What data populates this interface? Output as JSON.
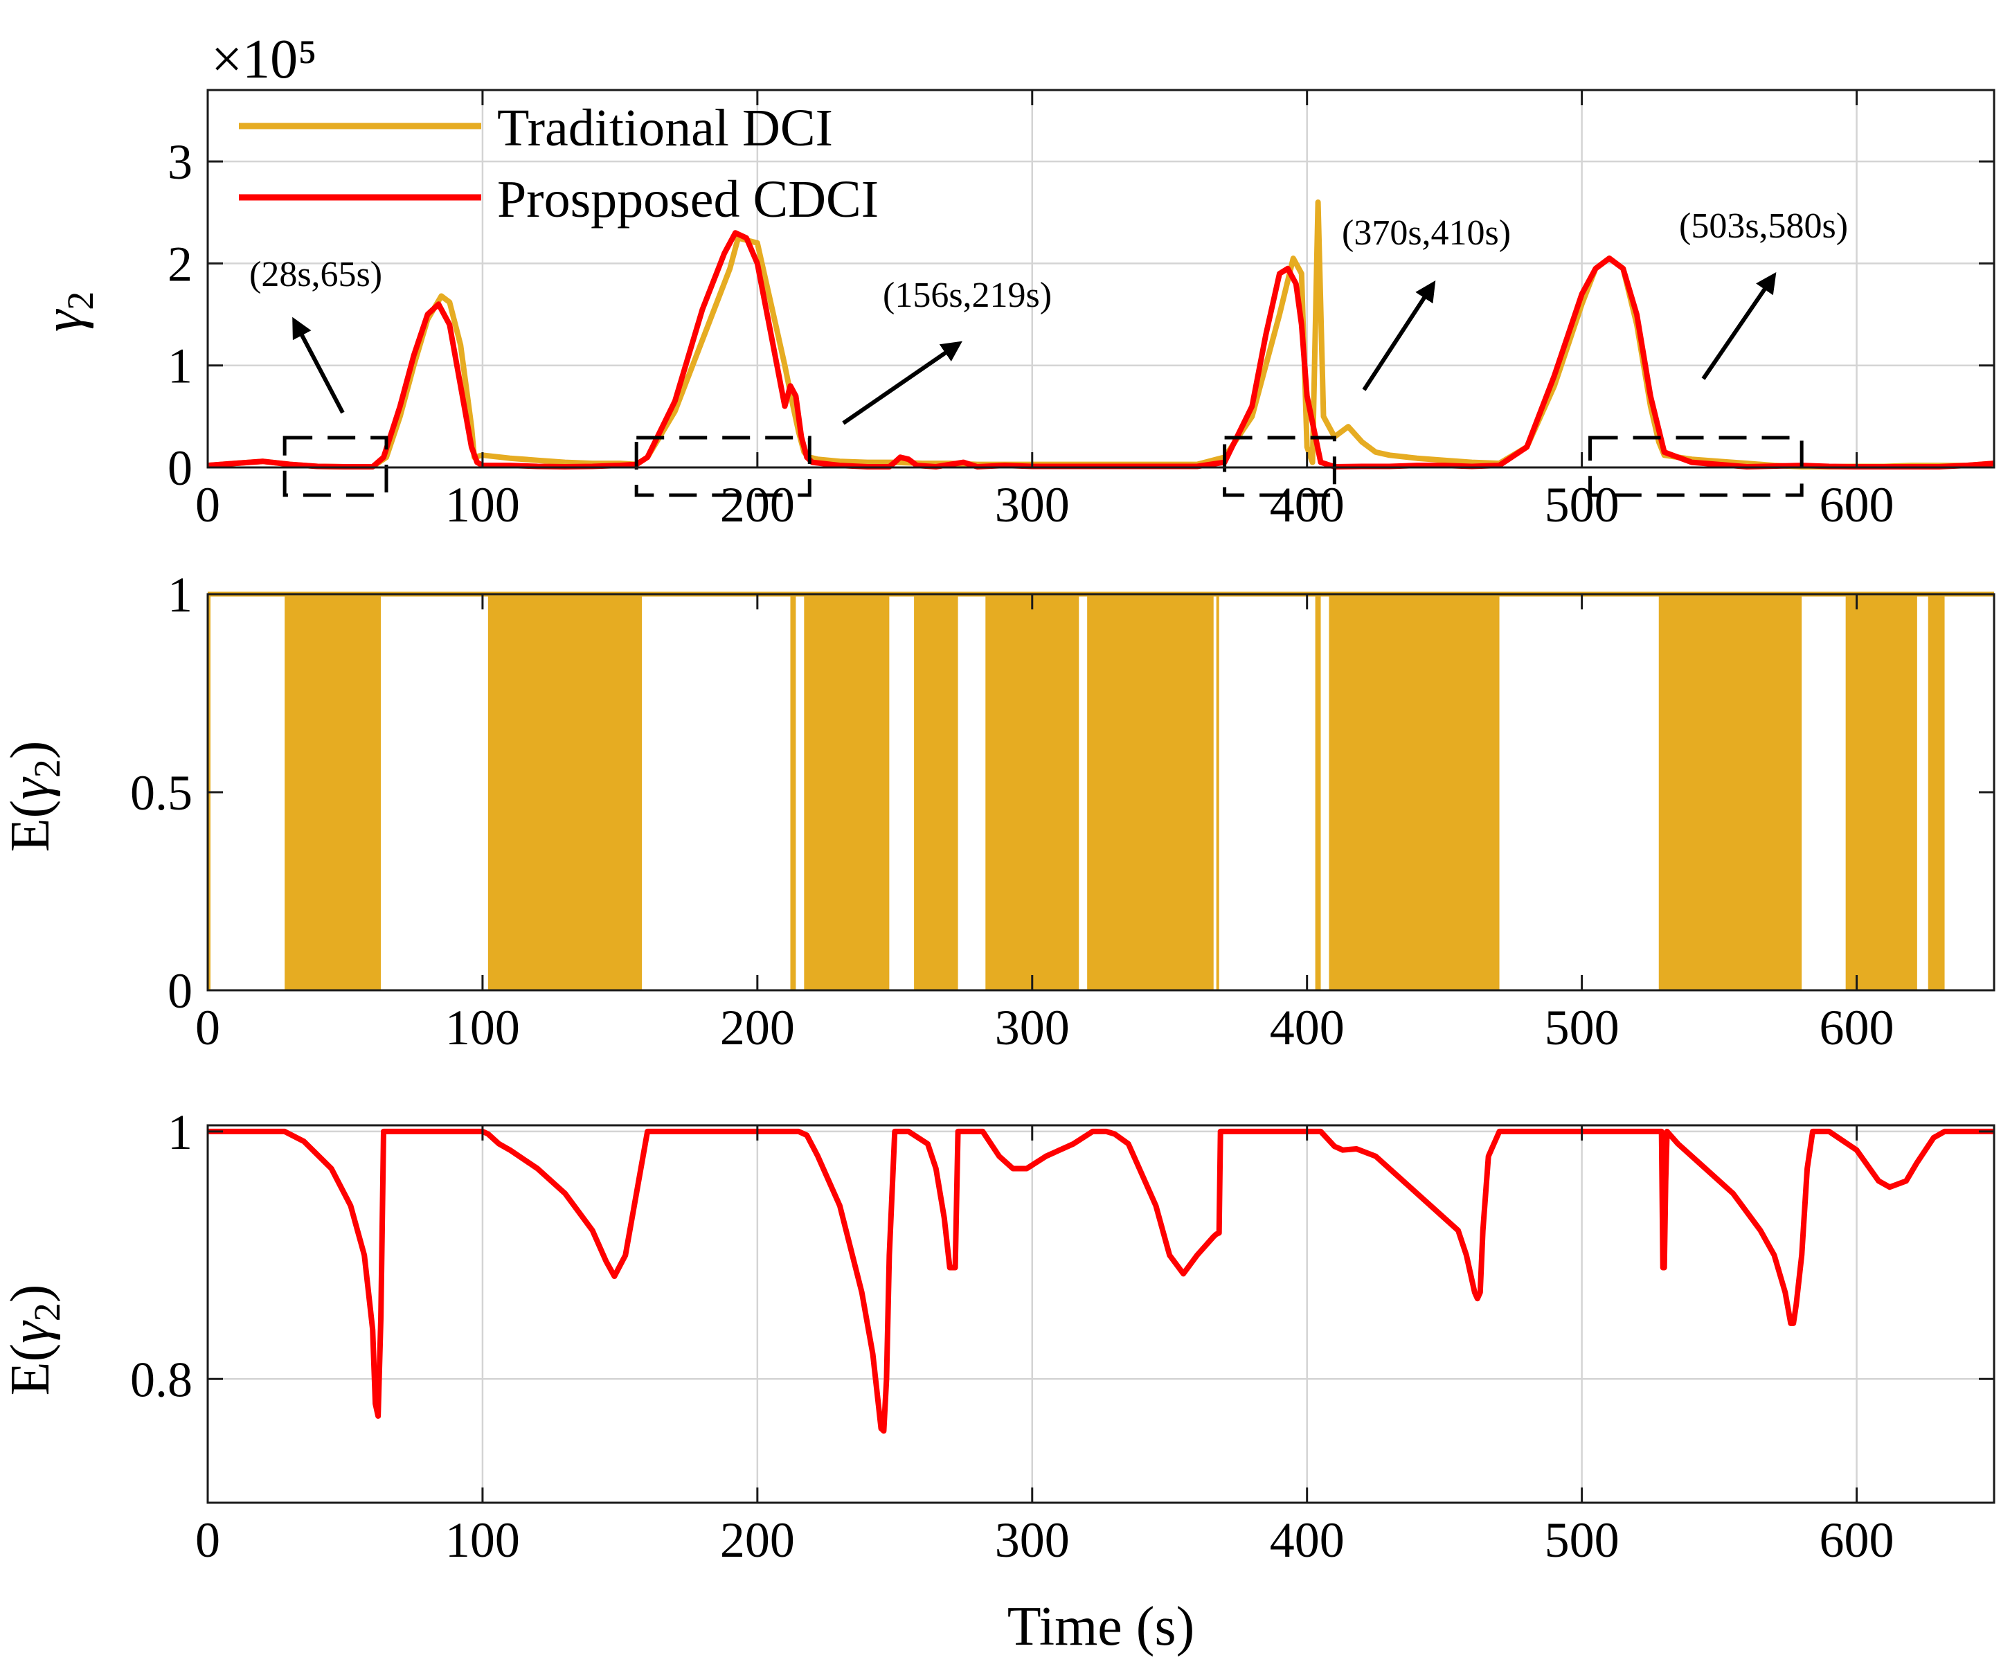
{
  "colors": {
    "traditional": "#E6AC22",
    "proposed": "#FF0000",
    "axis": "#1a1a1a",
    "grid": "#d4d4d4"
  },
  "legend": {
    "traditional": "Traditional DCI",
    "proposed": "Prospposed CDCI"
  },
  "chart_data": [
    {
      "type": "line",
      "panel": "top",
      "ylabel": "γ2",
      "exponent_label": "×10⁵",
      "xlim": [
        0,
        650
      ],
      "ylim": [
        0,
        3.7
      ],
      "xticks": [
        0,
        100,
        200,
        300,
        400,
        500,
        600
      ],
      "xtick_labels": [
        "0",
        "100",
        "200",
        "300",
        "400",
        "500",
        "600"
      ],
      "yticks": [
        0,
        1,
        2,
        3
      ],
      "ytick_labels": [
        "0",
        "1",
        "2",
        "3"
      ],
      "grid": true,
      "legend_position": "top-left",
      "series": [
        {
          "name": "Traditional DCI",
          "x": [
            0,
            10,
            20,
            30,
            40,
            50,
            60,
            65,
            70,
            75,
            80,
            85,
            88,
            92,
            96,
            97,
            100,
            110,
            120,
            130,
            140,
            150,
            156,
            160,
            170,
            180,
            190,
            193,
            200,
            205,
            210,
            213,
            215,
            217,
            219,
            222,
            230,
            240,
            250,
            260,
            270,
            280,
            300,
            320,
            340,
            360,
            370,
            380,
            390,
            395,
            398,
            400,
            402,
            404,
            406,
            410,
            415,
            420,
            425,
            430,
            440,
            450,
            460,
            470,
            480,
            490,
            500,
            505,
            510,
            515,
            520,
            525,
            528,
            530,
            540,
            550,
            560,
            570,
            580,
            590,
            600,
            610,
            620,
            630,
            640,
            650
          ],
          "y": [
            0.02,
            0.04,
            0.06,
            0.03,
            0.01,
            -0.05,
            -0.08,
            0.1,
            0.5,
            1.0,
            1.45,
            1.68,
            1.62,
            1.2,
            0.4,
            0.1,
            0.12,
            0.09,
            0.07,
            0.05,
            0.04,
            0.04,
            0.03,
            0.1,
            0.55,
            1.25,
            1.95,
            2.25,
            2.2,
            1.6,
            1.0,
            0.6,
            0.35,
            0.15,
            0.1,
            0.08,
            0.06,
            0.05,
            0.05,
            0.04,
            0.04,
            0.03,
            0.03,
            0.03,
            0.03,
            0.03,
            0.1,
            0.5,
            1.5,
            2.05,
            1.9,
            0.2,
            0.05,
            2.6,
            0.5,
            0.3,
            0.4,
            0.25,
            0.15,
            0.12,
            0.09,
            0.07,
            0.05,
            0.04,
            0.2,
            0.8,
            1.6,
            1.95,
            2.05,
            1.95,
            1.4,
            0.6,
            0.25,
            0.12,
            0.08,
            0.06,
            0.04,
            0.02,
            0.0,
            -0.02,
            0.01,
            0.01,
            0.02,
            0.02,
            0.02,
            0.04
          ]
        },
        {
          "name": "Prospposed CDCI",
          "x": [
            0,
            10,
            20,
            30,
            40,
            50,
            60,
            64,
            70,
            75,
            80,
            84,
            88,
            92,
            96,
            98,
            100,
            110,
            120,
            130,
            140,
            150,
            156,
            160,
            170,
            180,
            188,
            192,
            196,
            200,
            205,
            210,
            212,
            214,
            216,
            218,
            220,
            230,
            240,
            245,
            248,
            250,
            252,
            255,
            258,
            265,
            275,
            280,
            290,
            300,
            320,
            340,
            360,
            370,
            380,
            385,
            390,
            393,
            396,
            398,
            400,
            405,
            410,
            420,
            430,
            440,
            450,
            460,
            470,
            480,
            490,
            500,
            505,
            510,
            515,
            520,
            525,
            530,
            540,
            560,
            580,
            590,
            600,
            610,
            620,
            630,
            640,
            650
          ],
          "y": [
            0.02,
            0.04,
            0.06,
            0.03,
            0.01,
            -0.05,
            -0.08,
            0.1,
            0.6,
            1.1,
            1.5,
            1.6,
            1.4,
            0.8,
            0.2,
            0.05,
            0.02,
            0.02,
            0.01,
            0.0,
            0.01,
            0.02,
            0.03,
            0.1,
            0.65,
            1.55,
            2.1,
            2.3,
            2.25,
            2.0,
            1.3,
            0.6,
            0.8,
            0.7,
            0.3,
            0.1,
            0.05,
            0.02,
            0.0,
            -0.05,
            -0.1,
            0.05,
            0.1,
            0.08,
            0.02,
            -0.05,
            0.05,
            -0.02,
            0.02,
            0.01,
            0.01,
            0.01,
            0.01,
            0.05,
            0.6,
            1.3,
            1.9,
            1.95,
            1.8,
            1.4,
            0.7,
            0.05,
            0.0,
            0.01,
            0.01,
            0.02,
            0.02,
            0.01,
            0.02,
            0.2,
            0.9,
            1.7,
            1.95,
            2.05,
            1.95,
            1.5,
            0.7,
            0.15,
            0.05,
            0.0,
            0.02,
            0.01,
            0.0,
            0.0,
            0.0,
            0.0,
            0.02,
            0.04
          ]
        }
      ],
      "annotations": [
        {
          "text": "(28s,65s)",
          "start": 28,
          "end": 65
        },
        {
          "text": "(156s,219s)",
          "start": 156,
          "end": 219
        },
        {
          "text": "(370s,410s)",
          "start": 370,
          "end": 410
        },
        {
          "text": "(503s,580s)",
          "start": 503,
          "end": 580
        }
      ]
    },
    {
      "type": "bar",
      "panel": "middle",
      "ylabel": "E(γ2)",
      "xlim": [
        0,
        650
      ],
      "ylim": [
        0,
        1
      ],
      "xticks": [
        0,
        100,
        200,
        300,
        400,
        500,
        600
      ],
      "xtick_labels": [
        "0",
        "100",
        "200",
        "300",
        "400",
        "500",
        "600"
      ],
      "yticks": [
        0,
        0.5,
        1
      ],
      "ytick_labels": [
        "0",
        "0.5",
        "1"
      ],
      "grid": false,
      "series_name": "Traditional DCI",
      "baseline_value": 1,
      "switching_intervals": [
        [
          0,
          1
        ],
        [
          28,
          63
        ],
        [
          102,
          158
        ],
        [
          212,
          214
        ],
        [
          217,
          248
        ],
        [
          257,
          273
        ],
        [
          283,
          317
        ],
        [
          320,
          366
        ],
        [
          367,
          368
        ],
        [
          403,
          405
        ],
        [
          408,
          470
        ],
        [
          528,
          580
        ],
        [
          596,
          622
        ],
        [
          626,
          632
        ]
      ]
    },
    {
      "type": "line",
      "panel": "bottom",
      "ylabel": "E(γ2)",
      "xlabel": "Time (s)",
      "xlim": [
        0,
        650
      ],
      "ylim": [
        0.7,
        1.005
      ],
      "xticks": [
        0,
        100,
        200,
        300,
        400,
        500,
        600
      ],
      "xtick_labels": [
        "0",
        "100",
        "200",
        "300",
        "400",
        "500",
        "600"
      ],
      "yticks": [
        0.8,
        1
      ],
      "ytick_labels": [
        "0.8",
        "1"
      ],
      "grid": true,
      "series": [
        {
          "name": "Prospposed CDCI",
          "x": [
            0,
            28,
            35,
            45,
            52,
            57,
            60,
            61,
            62,
            63,
            64,
            100,
            102,
            106,
            110,
            120,
            130,
            140,
            145,
            148,
            152,
            156,
            160,
            215,
            218,
            222,
            230,
            238,
            242,
            245,
            246,
            247,
            248,
            250,
            251,
            253,
            255,
            262,
            265,
            268,
            270,
            272,
            273,
            282,
            288,
            293,
            298,
            305,
            315,
            322,
            327,
            330,
            335,
            345,
            350,
            355,
            360,
            366,
            367,
            368,
            368.5,
            369,
            370,
            405,
            410,
            413,
            418,
            425,
            435,
            445,
            455,
            458,
            461,
            462,
            463,
            464,
            466,
            470,
            475,
            529,
            529.5,
            530,
            530.5,
            531,
            535,
            545,
            555,
            565,
            570,
            574,
            576,
            577,
            578,
            580,
            582,
            584,
            590,
            600,
            608,
            612,
            618,
            622,
            628,
            632,
            640,
            650
          ],
          "y": [
            1,
            1,
            0.992,
            0.97,
            0.94,
            0.9,
            0.84,
            0.78,
            0.77,
            0.85,
            1,
            1,
            0.998,
            0.99,
            0.985,
            0.97,
            0.95,
            0.92,
            0.895,
            0.883,
            0.9,
            0.95,
            1,
            1,
            0.997,
            0.98,
            0.94,
            0.87,
            0.82,
            0.76,
            0.758,
            0.8,
            0.9,
            1,
            1,
            1,
            1,
            0.99,
            0.97,
            0.93,
            0.89,
            0.89,
            1,
            1,
            0.98,
            0.97,
            0.97,
            0.98,
            0.99,
            1,
            1,
            0.998,
            0.99,
            0.94,
            0.9,
            0.885,
            0.9,
            0.915,
            0.917,
            0.918,
            1,
            1,
            1,
            1,
            0.988,
            0.985,
            0.986,
            0.98,
            0.96,
            0.94,
            0.92,
            0.9,
            0.87,
            0.865,
            0.87,
            0.92,
            0.98,
            1,
            1,
            1,
            0.89,
            0.89,
            0.96,
            1,
            0.99,
            0.97,
            0.95,
            0.92,
            0.9,
            0.87,
            0.845,
            0.845,
            0.86,
            0.9,
            0.97,
            1,
            1,
            0.985,
            0.96,
            0.955,
            0.96,
            0.975,
            0.995,
            1,
            1,
            1
          ]
        }
      ]
    }
  ]
}
